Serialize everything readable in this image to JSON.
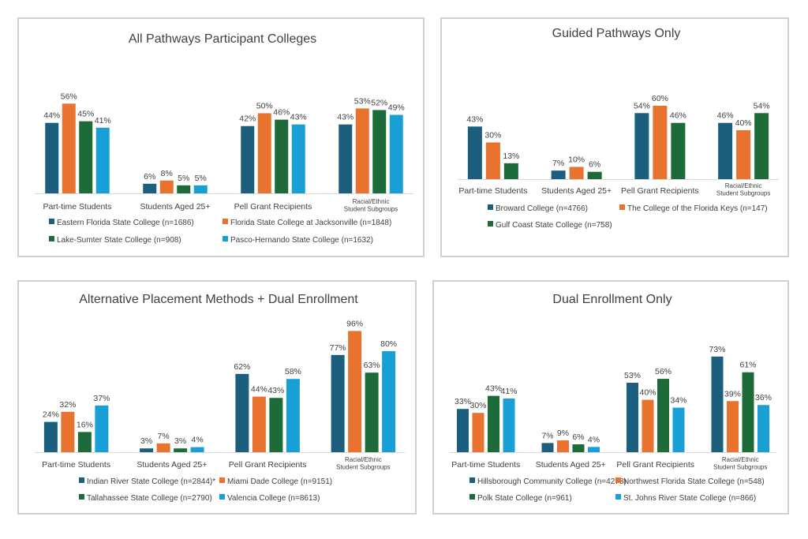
{
  "colors": {
    "s0": "#1b5e7e",
    "s1": "#e8722e",
    "s2": "#1e6b3a",
    "s3": "#189fd6",
    "axis": "#d9d9d9",
    "text": "#404040"
  },
  "chart_data": [
    {
      "type": "bar",
      "title": "All Pathways Participant Colleges",
      "categories": [
        "Part-time Students",
        "Students Aged 25+",
        "Pell Grant Recipients",
        "Racial/Ethnic Student Subgroups"
      ],
      "series": [
        {
          "name": "Eastern Florida State College (n=1686)",
          "values": [
            44,
            6,
            42,
            43
          ]
        },
        {
          "name": "Florida State College at Jacksonville (n=1848)",
          "values": [
            56,
            8,
            50,
            53
          ]
        },
        {
          "name": "Lake-Sumter State College (n=908)",
          "values": [
            45,
            5,
            46,
            52
          ]
        },
        {
          "name": "Pasco-Hernando State College (n=1632)",
          "values": [
            41,
            5,
            43,
            49
          ]
        }
      ],
      "value_suffix": "%",
      "ylim": [
        0,
        100
      ],
      "legend": "bottom",
      "grid": false
    },
    {
      "type": "bar",
      "title": "Guided Pathways Only",
      "categories": [
        "Part-time Students",
        "Students Aged 25+",
        "Pell Grant Recipients",
        "Racial/Ethnic Student Subgroups"
      ],
      "series": [
        {
          "name": "Broward College (n=4766)",
          "values": [
            43,
            7,
            54,
            46
          ]
        },
        {
          "name": "The College of the Florida Keys (n=147)",
          "values": [
            30,
            10,
            60,
            40
          ]
        },
        {
          "name": "Gulf Coast State College (n=758)",
          "values": [
            13,
            6,
            46,
            54
          ]
        }
      ],
      "value_suffix": "%",
      "ylim": [
        0,
        100
      ],
      "legend": "bottom",
      "grid": false
    },
    {
      "type": "bar",
      "title": "Alternative Placement Methods + Dual Enrollment",
      "categories": [
        "Part-time Students",
        "Students Aged 25+",
        "Pell Grant Recipients",
        "Racial/Ethnic Student Subgroups"
      ],
      "series": [
        {
          "name": "Indian River State College (n=2844)*",
          "values": [
            24,
            3,
            62,
            77
          ]
        },
        {
          "name": "Miami Dade College (n=9151)",
          "values": [
            32,
            7,
            44,
            96
          ]
        },
        {
          "name": "Tallahassee State College (n=2790)",
          "values": [
            16,
            3,
            43,
            63
          ]
        },
        {
          "name": "Valencia College (n=8613)",
          "values": [
            37,
            4,
            58,
            80
          ]
        }
      ],
      "value_suffix": "%",
      "ylim": [
        0,
        100
      ],
      "legend": "bottom",
      "grid": false
    },
    {
      "type": "bar",
      "title": "Dual Enrollment  Only",
      "categories": [
        "Part-time Students",
        "Students Aged 25+",
        "Pell Grant Recipients",
        "Racial/Ethnic Student Subgroups"
      ],
      "series": [
        {
          "name": "Hillsborough Community College (n=4278)",
          "values": [
            33,
            7,
            53,
            73
          ]
        },
        {
          "name": "Northwest Florida State College (n=548)",
          "values": [
            30,
            9,
            40,
            39
          ]
        },
        {
          "name": "Polk State College (n=961)",
          "values": [
            43,
            6,
            56,
            61
          ]
        },
        {
          "name": "St. Johns River State College (n=866)",
          "values": [
            41,
            4,
            34,
            36
          ]
        }
      ],
      "value_suffix": "%",
      "ylim": [
        0,
        100
      ],
      "legend": "bottom",
      "grid": false
    }
  ]
}
